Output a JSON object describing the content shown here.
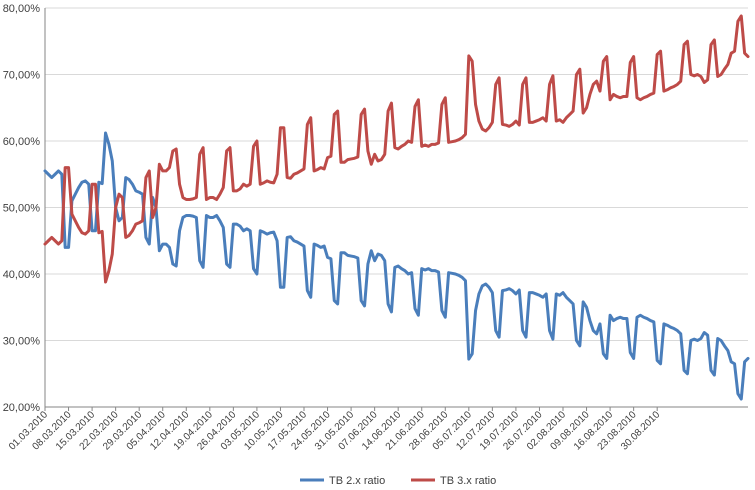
{
  "chart_data": {
    "type": "line",
    "title": "",
    "xlabel": "",
    "ylabel": "",
    "x_start": "01.03.2010",
    "ylim": [
      20,
      80
    ],
    "y_ticks": [
      "20,00%",
      "30,00%",
      "40,00%",
      "50,00%",
      "60,00%",
      "70,00%",
      "80,00%"
    ],
    "x_tick_labels": [
      "01.03.2010",
      "08.03.2010",
      "15.03.2010",
      "22.03.2010",
      "29.03.2010",
      "05.04.2010",
      "12.04.2010",
      "19.04.2010",
      "26.04.2010",
      "03.05.2010",
      "10.05.2010",
      "17.05.2010",
      "24.05.2010",
      "31.05.2010",
      "07.06.2010",
      "14.06.2010",
      "21.06.2010",
      "28.06.2010",
      "05.07.2010",
      "12.07.2010",
      "19.07.2010",
      "26.07.2010",
      "02.08.2010",
      "09.08.2010",
      "16.08.2010",
      "23.08.2010",
      "30.08.2010"
    ],
    "grid": "horizontal",
    "legend_position": "bottom",
    "series": [
      {
        "name": "TB 2.x ratio",
        "color": "#4a7ebb",
        "values": [
          55.5,
          55.0,
          54.5,
          55.0,
          55.5,
          55.0,
          44.0,
          44.0,
          51.0,
          52.0,
          53.0,
          53.8,
          54.0,
          53.5,
          46.5,
          46.5,
          53.8,
          53.6,
          61.2,
          59.5,
          57.0,
          50.0,
          48.0,
          48.5,
          54.5,
          54.2,
          53.5,
          52.5,
          52.3,
          52.0,
          45.5,
          44.5,
          51.5,
          50.0,
          43.5,
          44.5,
          44.5,
          44.0,
          41.5,
          41.2,
          46.5,
          48.5,
          48.8,
          48.8,
          48.7,
          48.5,
          42.0,
          41.0,
          48.8,
          48.5,
          48.5,
          48.8,
          48.0,
          47.0,
          41.5,
          41.0,
          47.5,
          47.5,
          47.2,
          46.5,
          46.8,
          46.5,
          40.8,
          40.0,
          46.5,
          46.3,
          46.0,
          46.2,
          46.3,
          45.0,
          38.0,
          38.0,
          45.5,
          45.6,
          45.0,
          44.8,
          44.5,
          44.2,
          37.5,
          36.5,
          44.5,
          44.3,
          44.0,
          44.2,
          42.5,
          42.3,
          36.0,
          35.5,
          43.2,
          43.2,
          42.8,
          42.7,
          42.6,
          42.4,
          36.0,
          35.2,
          41.5,
          43.5,
          42.0,
          43.0,
          42.8,
          42.0,
          35.5,
          34.3,
          41.0,
          41.2,
          40.8,
          40.5,
          40.0,
          40.2,
          34.8,
          33.8,
          40.8,
          40.6,
          40.8,
          40.5,
          40.5,
          40.3,
          34.5,
          33.5,
          40.2,
          40.1,
          40.0,
          39.8,
          39.5,
          39.0,
          27.2,
          28.0,
          34.5,
          37.0,
          38.2,
          38.5,
          38.0,
          37.2,
          31.5,
          30.5,
          37.5,
          37.6,
          37.8,
          37.5,
          37.0,
          37.6,
          31.5,
          30.5,
          37.2,
          37.2,
          37.0,
          36.8,
          36.5,
          37.0,
          31.5,
          30.2,
          37.0,
          36.8,
          37.2,
          36.5,
          36.0,
          35.5,
          30.0,
          29.2,
          35.8,
          35.0,
          33.0,
          31.5,
          31.0,
          32.5,
          28.0,
          27.3,
          33.8,
          33.0,
          33.3,
          33.5,
          33.3,
          33.3,
          28.2,
          27.3,
          33.5,
          33.8,
          33.5,
          33.3,
          33.0,
          32.8,
          27.0,
          26.5,
          32.5,
          32.3,
          32.0,
          31.8,
          31.5,
          31.0,
          25.5,
          25.0,
          30.0,
          30.2,
          30.0,
          30.3,
          31.2,
          30.8,
          25.5,
          24.8,
          30.3,
          30.0,
          29.2,
          28.5,
          26.8,
          26.5,
          22.0,
          21.2,
          26.8,
          27.3
        ]
      },
      {
        "name": "TB 3.x ratio",
        "color": "#be4b48",
        "values": [
          44.5,
          45.0,
          45.5,
          45.0,
          44.5,
          45.0,
          56.0,
          56.0,
          49.0,
          48.0,
          47.0,
          46.2,
          46.0,
          46.5,
          53.5,
          53.5,
          46.2,
          46.4,
          38.8,
          40.5,
          43.0,
          50.0,
          52.0,
          51.5,
          45.5,
          45.8,
          46.5,
          47.5,
          47.7,
          48.0,
          54.5,
          55.5,
          48.5,
          50.0,
          56.5,
          55.5,
          55.5,
          56.0,
          58.5,
          58.8,
          53.5,
          51.5,
          51.2,
          51.2,
          51.3,
          51.5,
          58.0,
          59.0,
          51.2,
          51.5,
          51.5,
          51.2,
          52.0,
          53.0,
          58.5,
          59.0,
          52.5,
          52.5,
          52.8,
          53.5,
          53.2,
          53.5,
          59.2,
          60.0,
          53.5,
          53.7,
          54.0,
          53.8,
          53.7,
          55.0,
          62.0,
          62.0,
          54.5,
          54.4,
          55.0,
          55.2,
          55.5,
          55.8,
          62.5,
          63.5,
          55.5,
          55.7,
          56.0,
          55.8,
          57.5,
          57.7,
          64.0,
          64.5,
          56.8,
          56.8,
          57.2,
          57.3,
          57.4,
          57.6,
          64.0,
          64.8,
          58.5,
          56.5,
          58.0,
          57.0,
          57.2,
          58.0,
          64.5,
          65.7,
          59.0,
          58.8,
          59.2,
          59.5,
          60.0,
          59.8,
          65.2,
          66.2,
          59.2,
          59.4,
          59.2,
          59.5,
          59.5,
          59.7,
          65.5,
          66.5,
          59.8,
          59.9,
          60.0,
          60.2,
          60.5,
          61.0,
          72.8,
          72.0,
          65.5,
          63.0,
          61.8,
          61.5,
          62.0,
          62.8,
          68.5,
          69.5,
          62.5,
          62.4,
          62.2,
          62.5,
          63.0,
          62.4,
          68.5,
          69.5,
          62.8,
          62.8,
          63.0,
          63.2,
          63.5,
          63.0,
          68.5,
          69.8,
          63.0,
          63.2,
          62.8,
          63.5,
          64.0,
          64.5,
          70.0,
          70.8,
          64.2,
          65.0,
          67.0,
          68.5,
          69.0,
          67.5,
          72.0,
          72.7,
          66.2,
          67.0,
          66.7,
          66.5,
          66.7,
          66.7,
          71.8,
          72.7,
          66.5,
          66.2,
          66.5,
          66.7,
          67.0,
          67.2,
          73.0,
          73.5,
          67.5,
          67.7,
          68.0,
          68.2,
          68.5,
          69.0,
          74.5,
          75.0,
          70.0,
          69.8,
          70.0,
          69.7,
          68.8,
          69.2,
          74.5,
          75.2,
          69.7,
          70.0,
          70.8,
          71.5,
          73.2,
          73.5,
          78.0,
          78.8,
          73.2,
          72.7
        ]
      }
    ]
  }
}
